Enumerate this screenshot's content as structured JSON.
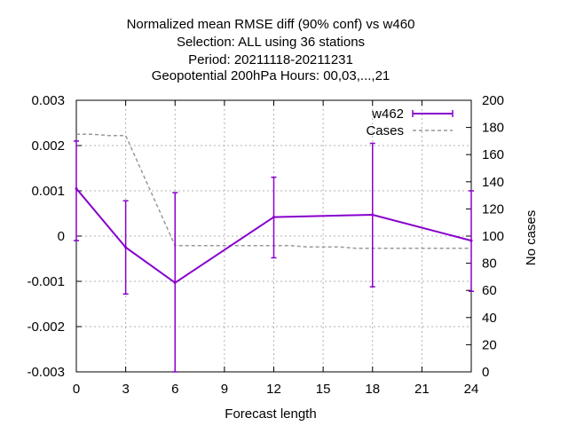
{
  "chart_data": {
    "type": "line",
    "title_lines": [
      "Normalized mean RMSE diff (90% conf) vs w460",
      "Selection: ALL using    36 stations",
      "Period: 20211118-20211231",
      "Geopotential 200hPa   Hours:  00,03,...,21"
    ],
    "xlabel": "Forecast length",
    "ylabel": "",
    "y2label": "No cases",
    "xlim": [
      0,
      24
    ],
    "ylim": [
      -0.003,
      0.003
    ],
    "y2lim": [
      0,
      200
    ],
    "x_ticks": [
      "0",
      "3",
      "6",
      "9",
      "12",
      "15",
      "18",
      "21",
      "24"
    ],
    "y_ticks": [
      "-0.003",
      "-0.002",
      "-0.001",
      "0",
      "0.001",
      "0.002",
      "0.003"
    ],
    "y2_ticks": [
      "0",
      "20",
      "40",
      "60",
      "80",
      "100",
      "120",
      "140",
      "160",
      "180",
      "200"
    ],
    "grid": true,
    "legend_position": "top-right",
    "series": [
      {
        "name": "w462",
        "style": "errorbar-line",
        "color": "#8800cc",
        "x": [
          0,
          3,
          6,
          12,
          18,
          24
        ],
        "y": [
          0.00105,
          -0.00025,
          -0.00103,
          0.00042,
          0.00047,
          -0.0001
        ],
        "y_low": [
          -0.0001,
          -0.00128,
          -0.00305,
          -0.00048,
          -0.00112,
          -0.00122
        ],
        "y_high": [
          0.0021,
          0.00078,
          0.00096,
          0.0013,
          0.00205,
          0.001
        ]
      },
      {
        "name": "Cases",
        "style": "dashed",
        "axis": "y2",
        "color": "#999999",
        "x": [
          0,
          1,
          2,
          3,
          6,
          9,
          12,
          13,
          14,
          15,
          16,
          17,
          18,
          24
        ],
        "y": [
          175,
          175,
          174,
          174,
          93,
          93,
          93,
          93,
          92,
          92,
          92,
          91,
          91,
          91
        ]
      }
    ]
  }
}
